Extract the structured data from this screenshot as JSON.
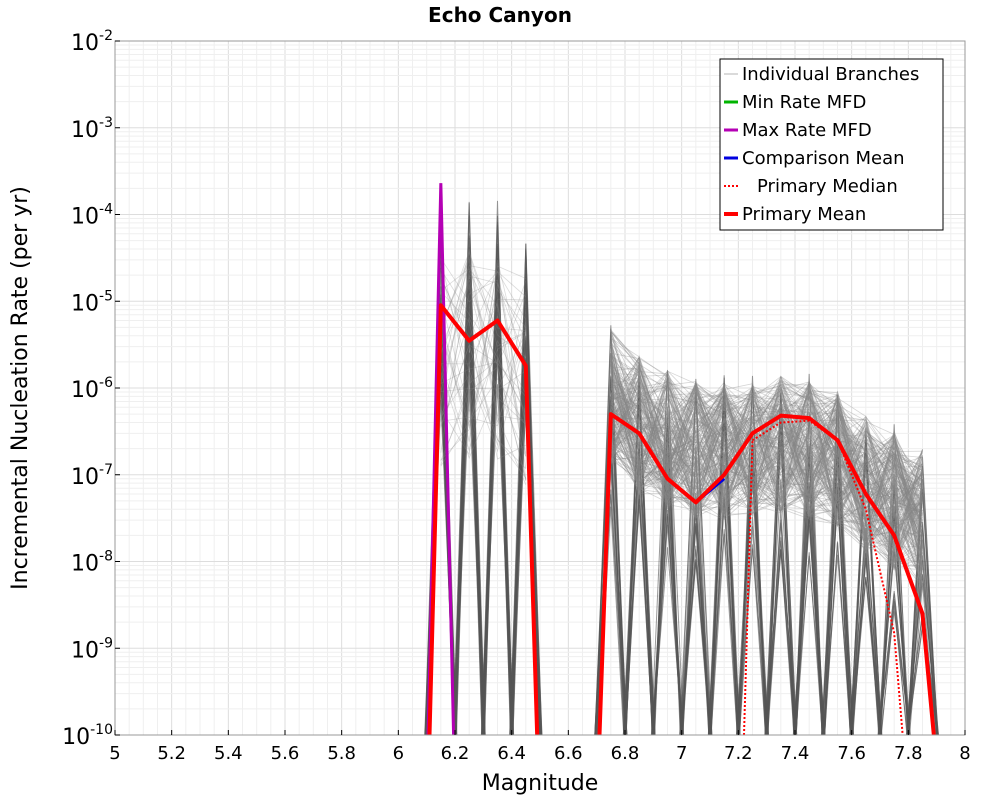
{
  "chart_data": {
    "type": "line",
    "title": "Echo Canyon",
    "xlabel": "Magnitude",
    "ylabel": "Incremental Nucleation Rate (per yr)",
    "xlim": [
      5,
      8
    ],
    "ylim": [
      1e-10,
      0.01
    ],
    "yscale": "log",
    "grid": true,
    "legend_position": "top-right",
    "x_ticks": [
      "5",
      "5.2",
      "5.4",
      "5.6",
      "5.8",
      "6",
      "6.2",
      "6.4",
      "6.6",
      "6.8",
      "7",
      "7.2",
      "7.4",
      "7.6",
      "7.8",
      "8"
    ],
    "y_ticks": [
      {
        "base": "10",
        "exp": "-10"
      },
      {
        "base": "10",
        "exp": "-9"
      },
      {
        "base": "10",
        "exp": "-8"
      },
      {
        "base": "10",
        "exp": "-7"
      },
      {
        "base": "10",
        "exp": "-6"
      },
      {
        "base": "10",
        "exp": "-5"
      },
      {
        "base": "10",
        "exp": "-4"
      },
      {
        "base": "10",
        "exp": "-3"
      },
      {
        "base": "10",
        "exp": "-2"
      }
    ],
    "legend": [
      {
        "label": "Individual Branches",
        "color": "#b4b4b4",
        "style": "solid"
      },
      {
        "label": "Min Rate MFD",
        "color": "#00b400",
        "style": "solid"
      },
      {
        "label": "Max Rate MFD",
        "color": "#b400b4",
        "style": "solid"
      },
      {
        "label": "Comparison Mean",
        "color": "#0000e0",
        "style": "solid"
      },
      {
        "label": "Primary Median",
        "color": "#ff0000",
        "style": "dotted"
      },
      {
        "label": "Primary Mean",
        "color": "#ff0000",
        "style": "solid-thick"
      }
    ],
    "series": [
      {
        "name": "Primary Mean",
        "color": "#ff0000",
        "x": [
          6.15,
          6.25,
          6.35,
          6.45,
          6.75,
          6.85,
          6.95,
          7.05,
          7.15,
          7.25,
          7.35,
          7.45,
          7.55,
          7.65,
          7.75,
          7.85
        ],
        "y": [
          9e-06,
          3.5e-06,
          6e-06,
          1.8e-06,
          5e-07,
          3e-07,
          9e-08,
          4.8e-08,
          1e-07,
          3e-07,
          4.8e-07,
          4.5e-07,
          2.5e-07,
          6e-08,
          2e-08,
          2.5e-09
        ]
      },
      {
        "name": "Primary Median",
        "color": "#ff0000",
        "x": [
          7.25,
          7.35,
          7.45,
          7.55,
          7.65,
          7.75
        ],
        "y": [
          2.5e-07,
          4e-07,
          4.2e-07,
          2.5e-07,
          4e-08,
          1.5e-09
        ]
      },
      {
        "name": "Max Rate MFD",
        "color": "#b400b4",
        "x": [
          6.15
        ],
        "y": [
          0.00023
        ]
      },
      {
        "name": "Comparison Mean",
        "color": "#0000e0",
        "x": [
          7.05,
          7.15
        ],
        "y": [
          4.8e-08,
          9e-08
        ]
      }
    ],
    "branch_peaks": [
      {
        "x": 6.15,
        "y": 0.0001
      },
      {
        "x": 6.25,
        "y": 0.00015
      },
      {
        "x": 6.35,
        "y": 0.00015
      },
      {
        "x": 6.45,
        "y": 7.5e-05
      },
      {
        "x": 6.75,
        "y": 6e-06
      },
      {
        "x": 6.85,
        "y": 3e-06
      },
      {
        "x": 6.95,
        "y": 2e-06
      },
      {
        "x": 7.05,
        "y": 1.5e-06
      },
      {
        "x": 7.15,
        "y": 1.5e-06
      },
      {
        "x": 7.25,
        "y": 1.5e-06
      },
      {
        "x": 7.35,
        "y": 1.8e-06
      },
      {
        "x": 7.45,
        "y": 1.5e-06
      },
      {
        "x": 7.55,
        "y": 1.2e-06
      },
      {
        "x": 7.65,
        "y": 6e-07
      },
      {
        "x": 7.75,
        "y": 4e-07
      },
      {
        "x": 7.85,
        "y": 2.5e-07
      }
    ]
  }
}
